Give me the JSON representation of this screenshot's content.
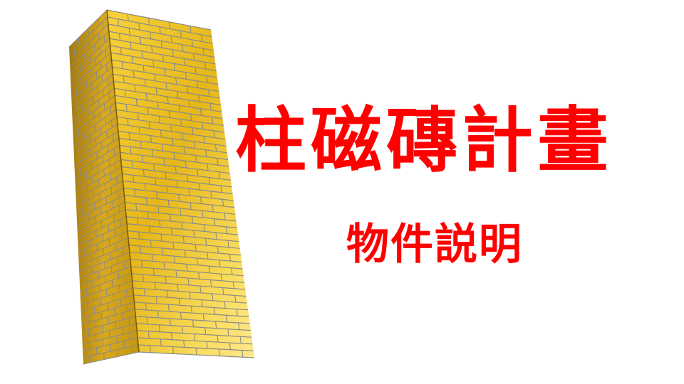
{
  "title": "柱磁磚計畫",
  "subtitle": "物件説明",
  "illustration": {
    "subject": "golden-brick-tower",
    "colors": {
      "front_light": "#ffe27a",
      "front_mid": "#f2c21c",
      "front_dark": "#c99a05",
      "side_light": "#e0b32a",
      "side_dark": "#9c7204",
      "top": "#f4cf3a",
      "mortar": "#8a8a8a"
    }
  },
  "text_color": "#ff0000"
}
